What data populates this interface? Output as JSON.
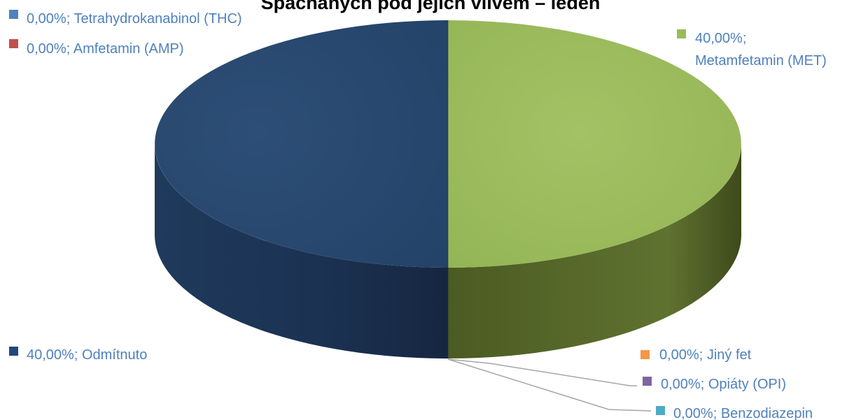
{
  "chart_data": {
    "type": "pie",
    "title": "Spacháných pod jejich vlivem – leden",
    "slices": [
      {
        "label": "Metamfetamin (MET)",
        "value": 40.0,
        "value_text": "40,00%",
        "color": "#9bbb59"
      },
      {
        "label": "Jiný fet",
        "value": 0.0,
        "value_text": "0,00%",
        "color": "#f79646"
      },
      {
        "label": "Opiáty (OPI)",
        "value": 0.0,
        "value_text": "0,00%",
        "color": "#8064a2"
      },
      {
        "label": "Benzodiazepin",
        "value": 0.0,
        "value_text": "0,00%",
        "color": "#4bacc6"
      },
      {
        "label": "Odmítnuto",
        "value": 40.0,
        "value_text": "40,00%",
        "color": "#1f497d"
      },
      {
        "label": "Tetrahydrokanabinol (THC)",
        "value": 0.0,
        "value_text": "0,00%",
        "color": "#4f81bd"
      },
      {
        "label": "Amfetamin (AMP)",
        "value": 0.0,
        "value_text": "0,00%",
        "color": "#c0504d"
      }
    ],
    "label_color": "#4f81bd",
    "legend": "none",
    "style": "3d-pie"
  }
}
